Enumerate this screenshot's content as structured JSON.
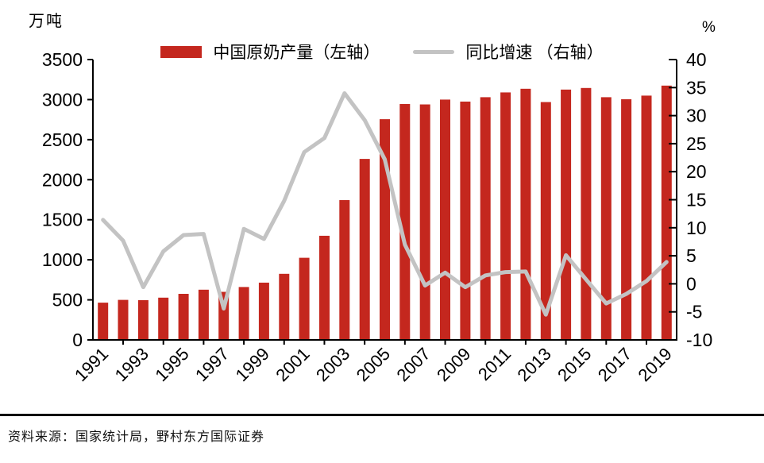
{
  "footer": {
    "source_text": "资料来源：国家统计局，野村东方国际证券"
  },
  "chart_data": {
    "type": "bar",
    "subtype": "dual-axis bar + line combo",
    "title": "",
    "grid": false,
    "legend_position": "top-center",
    "categories": [
      1991,
      1992,
      1993,
      1994,
      1995,
      1996,
      1997,
      1998,
      1999,
      2000,
      2001,
      2002,
      2003,
      2004,
      2005,
      2006,
      2007,
      2008,
      2009,
      2010,
      2011,
      2012,
      2013,
      2014,
      2015,
      2016,
      2017,
      2018,
      2019
    ],
    "x_tick_label_interval": 2,
    "x_tick_labels_shown": [
      "1991",
      "1993",
      "1995",
      "1997",
      "1999",
      "2001",
      "2003",
      "2005",
      "2007",
      "2009",
      "2011",
      "2013",
      "2015",
      "2017",
      "2019"
    ],
    "left_axis": {
      "label": "万吨",
      "min": 0,
      "max": 3500,
      "step": 500
    },
    "right_axis": {
      "label": "%",
      "min": -10,
      "max": 40,
      "step": 5
    },
    "series": [
      {
        "name": "中国原奶产量（左轴）",
        "type": "bar",
        "axis": "left",
        "color": "#C4271E",
        "values": [
          465,
          500,
          497,
          527,
          575,
          627,
          600,
          660,
          715,
          825,
          1025,
          1300,
          1745,
          2260,
          2755,
          2945,
          2940,
          3000,
          2975,
          3030,
          3090,
          3135,
          2970,
          3125,
          3145,
          3030,
          3005,
          3050,
          3175
        ]
      },
      {
        "name": "同比增速 （右轴）",
        "type": "line",
        "axis": "right",
        "color": "#C3C3C3",
        "values": [
          11.4,
          7.7,
          -0.6,
          5.8,
          8.7,
          8.9,
          -4.4,
          9.8,
          8.0,
          14.8,
          23.5,
          26.0,
          34.0,
          29.2,
          22.2,
          7.0,
          -0.3,
          2.0,
          -0.6,
          1.5,
          2.1,
          2.2,
          -5.5,
          5.1,
          0.8,
          -3.5,
          -1.8,
          0.5,
          3.9
        ]
      }
    ]
  }
}
